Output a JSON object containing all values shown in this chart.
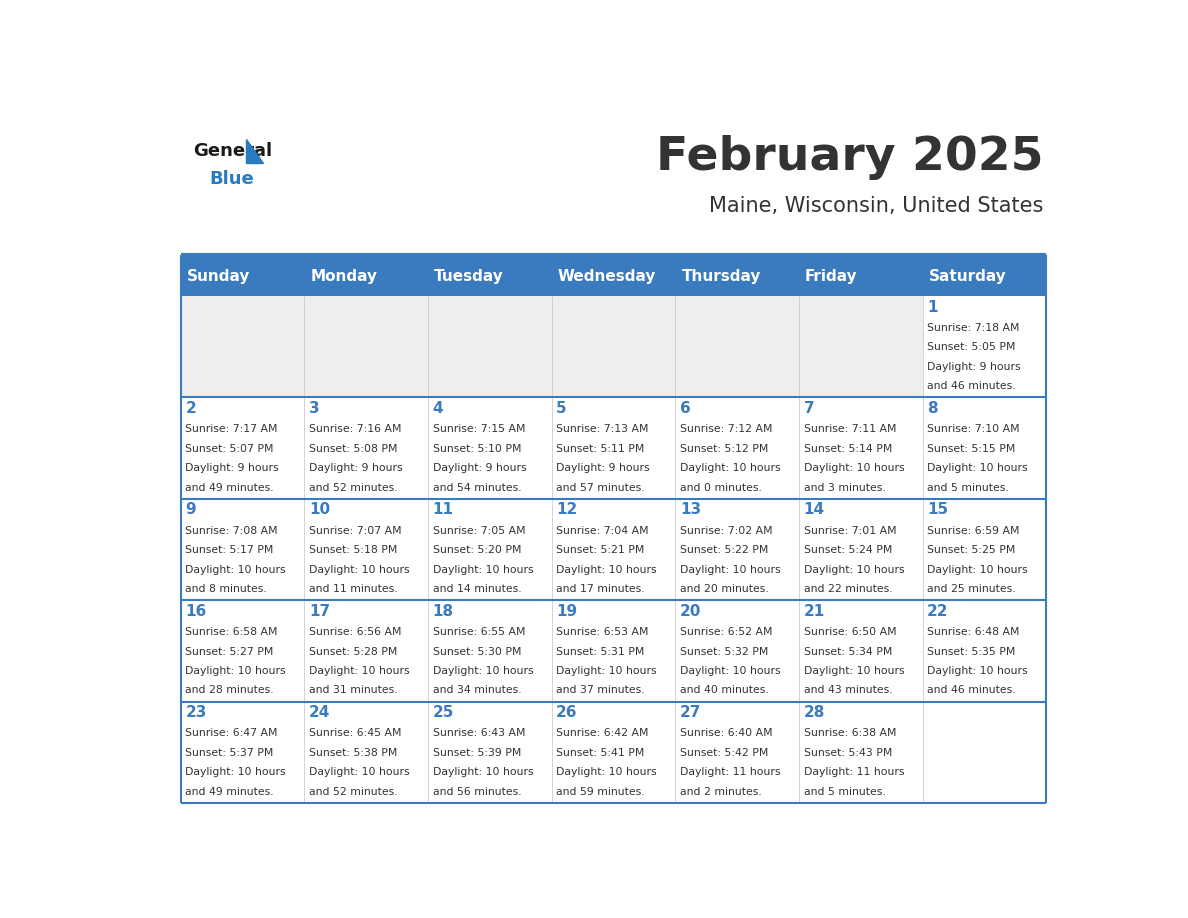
{
  "title": "February 2025",
  "subtitle": "Maine, Wisconsin, United States",
  "days_of_week": [
    "Sunday",
    "Monday",
    "Tuesday",
    "Wednesday",
    "Thursday",
    "Friday",
    "Saturday"
  ],
  "header_bg": "#3a7abf",
  "header_text": "#ffffff",
  "row_bg_light": "#eeeeee",
  "row_bg_white": "#ffffff",
  "divider_color": "#3a7abf",
  "day_num_color": "#3a7abf",
  "text_color": "#333333",
  "calendar_data": [
    [
      {
        "day": null,
        "sunrise": null,
        "sunset": null,
        "daylight": null
      },
      {
        "day": null,
        "sunrise": null,
        "sunset": null,
        "daylight": null
      },
      {
        "day": null,
        "sunrise": null,
        "sunset": null,
        "daylight": null
      },
      {
        "day": null,
        "sunrise": null,
        "sunset": null,
        "daylight": null
      },
      {
        "day": null,
        "sunrise": null,
        "sunset": null,
        "daylight": null
      },
      {
        "day": null,
        "sunrise": null,
        "sunset": null,
        "daylight": null
      },
      {
        "day": 1,
        "sunrise": "7:18 AM",
        "sunset": "5:05 PM",
        "daylight": "9 hours\nand 46 minutes."
      }
    ],
    [
      {
        "day": 2,
        "sunrise": "7:17 AM",
        "sunset": "5:07 PM",
        "daylight": "9 hours\nand 49 minutes."
      },
      {
        "day": 3,
        "sunrise": "7:16 AM",
        "sunset": "5:08 PM",
        "daylight": "9 hours\nand 52 minutes."
      },
      {
        "day": 4,
        "sunrise": "7:15 AM",
        "sunset": "5:10 PM",
        "daylight": "9 hours\nand 54 minutes."
      },
      {
        "day": 5,
        "sunrise": "7:13 AM",
        "sunset": "5:11 PM",
        "daylight": "9 hours\nand 57 minutes."
      },
      {
        "day": 6,
        "sunrise": "7:12 AM",
        "sunset": "5:12 PM",
        "daylight": "10 hours\nand 0 minutes."
      },
      {
        "day": 7,
        "sunrise": "7:11 AM",
        "sunset": "5:14 PM",
        "daylight": "10 hours\nand 3 minutes."
      },
      {
        "day": 8,
        "sunrise": "7:10 AM",
        "sunset": "5:15 PM",
        "daylight": "10 hours\nand 5 minutes."
      }
    ],
    [
      {
        "day": 9,
        "sunrise": "7:08 AM",
        "sunset": "5:17 PM",
        "daylight": "10 hours\nand 8 minutes."
      },
      {
        "day": 10,
        "sunrise": "7:07 AM",
        "sunset": "5:18 PM",
        "daylight": "10 hours\nand 11 minutes."
      },
      {
        "day": 11,
        "sunrise": "7:05 AM",
        "sunset": "5:20 PM",
        "daylight": "10 hours\nand 14 minutes."
      },
      {
        "day": 12,
        "sunrise": "7:04 AM",
        "sunset": "5:21 PM",
        "daylight": "10 hours\nand 17 minutes."
      },
      {
        "day": 13,
        "sunrise": "7:02 AM",
        "sunset": "5:22 PM",
        "daylight": "10 hours\nand 20 minutes."
      },
      {
        "day": 14,
        "sunrise": "7:01 AM",
        "sunset": "5:24 PM",
        "daylight": "10 hours\nand 22 minutes."
      },
      {
        "day": 15,
        "sunrise": "6:59 AM",
        "sunset": "5:25 PM",
        "daylight": "10 hours\nand 25 minutes."
      }
    ],
    [
      {
        "day": 16,
        "sunrise": "6:58 AM",
        "sunset": "5:27 PM",
        "daylight": "10 hours\nand 28 minutes."
      },
      {
        "day": 17,
        "sunrise": "6:56 AM",
        "sunset": "5:28 PM",
        "daylight": "10 hours\nand 31 minutes."
      },
      {
        "day": 18,
        "sunrise": "6:55 AM",
        "sunset": "5:30 PM",
        "daylight": "10 hours\nand 34 minutes."
      },
      {
        "day": 19,
        "sunrise": "6:53 AM",
        "sunset": "5:31 PM",
        "daylight": "10 hours\nand 37 minutes."
      },
      {
        "day": 20,
        "sunrise": "6:52 AM",
        "sunset": "5:32 PM",
        "daylight": "10 hours\nand 40 minutes."
      },
      {
        "day": 21,
        "sunrise": "6:50 AM",
        "sunset": "5:34 PM",
        "daylight": "10 hours\nand 43 minutes."
      },
      {
        "day": 22,
        "sunrise": "6:48 AM",
        "sunset": "5:35 PM",
        "daylight": "10 hours\nand 46 minutes."
      }
    ],
    [
      {
        "day": 23,
        "sunrise": "6:47 AM",
        "sunset": "5:37 PM",
        "daylight": "10 hours\nand 49 minutes."
      },
      {
        "day": 24,
        "sunrise": "6:45 AM",
        "sunset": "5:38 PM",
        "daylight": "10 hours\nand 52 minutes."
      },
      {
        "day": 25,
        "sunrise": "6:43 AM",
        "sunset": "5:39 PM",
        "daylight": "10 hours\nand 56 minutes."
      },
      {
        "day": 26,
        "sunrise": "6:42 AM",
        "sunset": "5:41 PM",
        "daylight": "10 hours\nand 59 minutes."
      },
      {
        "day": 27,
        "sunrise": "6:40 AM",
        "sunset": "5:42 PM",
        "daylight": "11 hours\nand 2 minutes."
      },
      {
        "day": 28,
        "sunrise": "6:38 AM",
        "sunset": "5:43 PM",
        "daylight": "11 hours\nand 5 minutes."
      },
      {
        "day": null,
        "sunrise": null,
        "sunset": null,
        "daylight": null
      }
    ]
  ],
  "logo_color_general": "#1a1a1a",
  "logo_color_blue": "#2a7abf"
}
